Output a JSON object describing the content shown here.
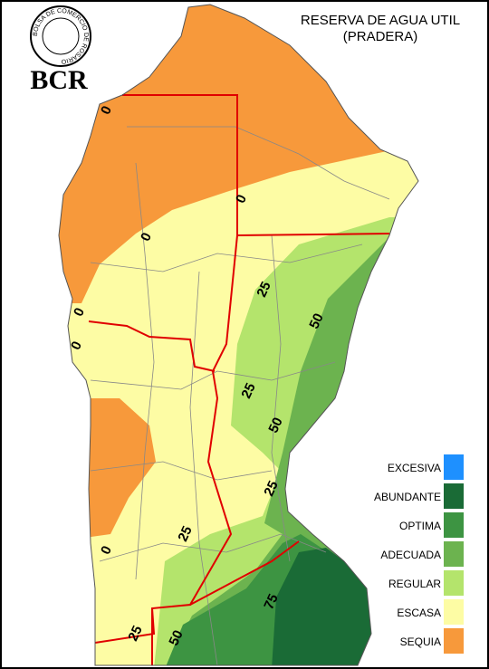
{
  "logo": {
    "ring_text": "BOLSA DE COMERCIO DE ROSARIO",
    "name": "BCR"
  },
  "title": [
    "RESERVA DE AGUA UTIL",
    "(PRADERA)"
  ],
  "legend": [
    {
      "label": "EXCESIVA",
      "color": "#1e90ff"
    },
    {
      "label": "ABUNDANTE",
      "color": "#1a6b36"
    },
    {
      "label": "OPTIMA",
      "color": "#3d9442"
    },
    {
      "label": "ADECUADA",
      "color": "#6cb34f"
    },
    {
      "label": "REGULAR",
      "color": "#b4e46c"
    },
    {
      "label": "ESCASA",
      "color": "#fdfca4"
    },
    {
      "label": "SEQUIA",
      "color": "#f7993b"
    }
  ],
  "contour_labels": [
    0,
    0,
    0,
    0,
    0,
    25,
    50,
    25,
    50,
    25,
    25,
    0,
    75,
    50,
    25
  ]
}
